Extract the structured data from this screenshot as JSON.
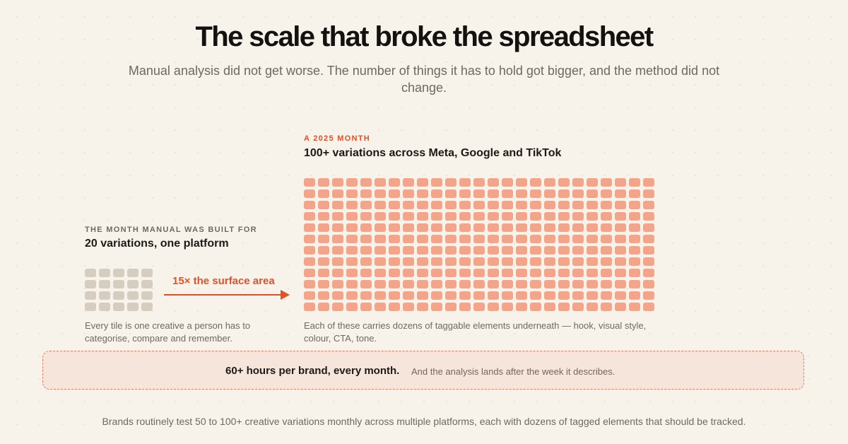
{
  "title": "The scale that broke the spreadsheet",
  "subtitle": "Manual analysis did not get worse. The number of things it has to hold got bigger, and the method did not change.",
  "before": {
    "kicker": "The month manual was built for",
    "heading": "20 variations, one platform",
    "tile_count": 20,
    "columns": 5,
    "caption": "Every tile is one creative a person has to categorise, compare and remember.",
    "tile_color": "#d6cdc1"
  },
  "arrow": {
    "label": "15× the surface area",
    "color": "#e0512a"
  },
  "after": {
    "kicker": "A 2025 month",
    "heading": "100+ variations across Meta, Google and TikTok",
    "tile_count": 300,
    "columns": 25,
    "caption": "Each of these carries dozens of taggable elements underneath — hook, visual style, colour, CTA, tone.",
    "tile_color": "#f3a489"
  },
  "banner": {
    "strong": "60+ hours per brand, every month.",
    "note": "And the analysis lands after the week it describes."
  },
  "footer": "Brands routinely test 50 to 100+ creative variations monthly across multiple platforms, each with dozens of tagged elements that should be tracked."
}
